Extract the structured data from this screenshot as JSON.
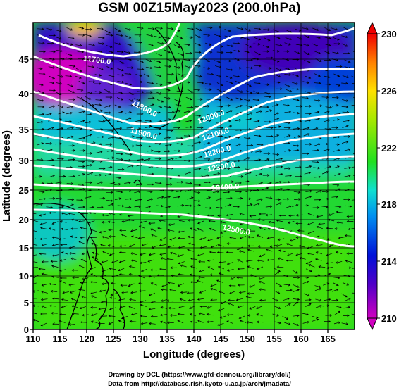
{
  "title": "GSM 00Z15May2023 (200.0hPa)",
  "x_axis": {
    "label": "Longitude (degrees)",
    "ticks": [
      "110",
      "115",
      "120",
      "125",
      "130",
      "135",
      "140",
      "145",
      "150",
      "155",
      "160",
      "165"
    ]
  },
  "y_axis": {
    "label": "Latitude  (degrees)",
    "ticks": [
      "0",
      "5",
      "10",
      "15",
      "20",
      "25",
      "30",
      "35",
      "40",
      "45"
    ]
  },
  "colorbar": {
    "ticks": [
      "210",
      "214",
      "218",
      "222",
      "226",
      "230"
    ],
    "colors": [
      "#d000c0",
      "#1000c8",
      "#0090f0",
      "#10e0d0",
      "#20e020",
      "#a8e800",
      "#ffe000",
      "#ff8000",
      "#f00000"
    ]
  },
  "contours": {
    "labels": [
      "11700.0",
      "11800.0",
      "11900.0",
      "12000.0",
      "12100.0",
      "12200.0",
      "12300.0",
      "12400.0",
      "12500.0"
    ],
    "color": "#ffffff"
  },
  "credits": {
    "line1": "Drawing by DCL (https://www.gfd-dennou.org/library/dcl/)",
    "line2": "Data from http://database.rish.kyoto-u.ac.jp/arch/jmadata/"
  }
}
